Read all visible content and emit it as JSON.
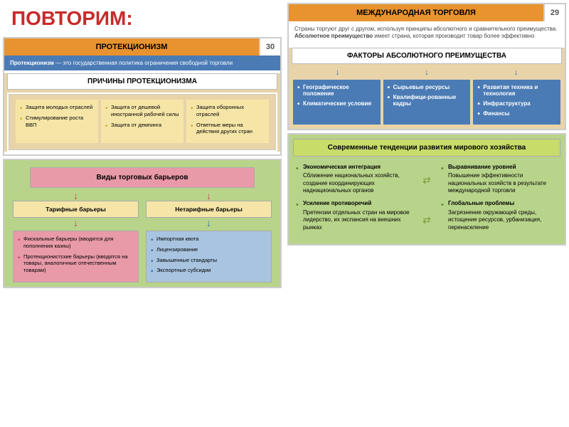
{
  "colors": {
    "orange": "#e8932f",
    "blueStrip": "#4a7bb5",
    "leftPanelBg": "#e8d4a8",
    "yellowBox": "#f5e6a8",
    "yellowBullet": "#d4a52a",
    "greenPanel": "#b8d48a",
    "pinkBox": "#e89aa8",
    "pinkBullet": "#c94560",
    "blueBox": "#a8c4e0",
    "blueBullet": "#3a6db0",
    "blueSolid": "#4a7bb5",
    "limeBox": "#c8dc6a",
    "greenBullet": "#5a8a2a"
  },
  "mainTitle": "ПОВТОРИМ:",
  "left": {
    "header": "ПРОТЕКЦИОНИЗМ",
    "pageNum": "30",
    "defBold": "Протекционизм",
    "defRest": " — это государственная политика ограничения свободной торговли",
    "reasonsTitle": "ПРИЧИНЫ ПРОТЕКЦИОНИЗМА",
    "reasons": [
      [
        "Защита молодых отраслей",
        "Стимулирование роста ВВП"
      ],
      [
        "Защита от дешевой иностранной рабочей силы",
        "Защита от демпинга"
      ],
      [
        "Защита оборонных отраслей",
        "Ответные меры на действия других стран"
      ]
    ],
    "barriersTitle": "Виды торговых барьеров",
    "tariff": {
      "label": "Тарифные барьеры",
      "items": [
        "Фискальные барьеры (вводятся для пополнения казны)",
        "Протекционистские барьеры (вводятся на товары, аналогичные отечественным товарам)"
      ]
    },
    "nontariff": {
      "label": "Нетарифные барьеры",
      "items": [
        "Импортная квота",
        "Лицензирование",
        "Завышенные стандарты",
        "Экспортные субсидии"
      ]
    }
  },
  "right": {
    "header": "МЕЖДУНАРОДНАЯ ТОРГОВЛЯ",
    "pageNum": "29",
    "intro1": "Страны торгуют друг с другом, используя принципы абсолютного и сравнительного преимущества.",
    "intro2b": "Абсолютное преимущество",
    "intro2r": " имеет страна, которая производит товар более эффективно",
    "factorsTitle": "ФАКТОРЫ АБСОЛЮТНОГО ПРЕИМУЩЕСТВА",
    "factors": [
      [
        "Географическое положение",
        "Климатические условия"
      ],
      [
        "Сырьевые ресурсы",
        "Квалифици-рованные кадры"
      ],
      [
        "Развитая техника и технология",
        "Инфраструктура",
        "Финансы"
      ]
    ],
    "trendsTitle": "Современные тенденции развития мирового хозяйства",
    "trendsLeft": [
      {
        "t": "Экономическая интеграция",
        "d": "Сближение национальных хозяйств, создание координирующих наднациональных органов"
      },
      {
        "t": "Усиление противоречий",
        "d": "Претензии отдельных стран на мировое лидерство, их экспансия на внешних рынках"
      }
    ],
    "trendsRight": [
      {
        "t": "Выравнивание уровней",
        "d": "Повышение эффективности национальных хозяйств в результате международной торговли"
      },
      {
        "t": "Глобальные проблемы",
        "d": "Загрязнение окружающей среды, истощение ресурсов, урбанизация, перенаселение"
      }
    ]
  }
}
